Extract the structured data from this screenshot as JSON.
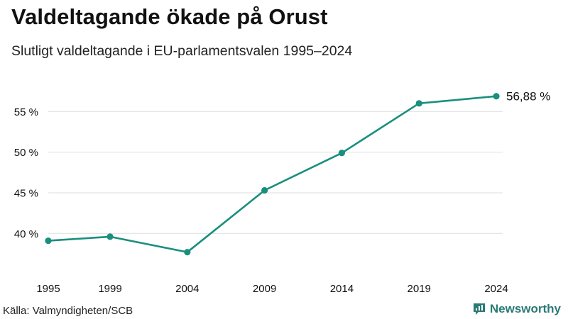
{
  "title": "Valdeltagande ökade på Orust",
  "subtitle": "Slutligt valdeltagande i EU-parlamentsvalen 1995–2024",
  "source": "Källa: Valmyndigheten/SCB",
  "brand": "Newsworthy",
  "colors": {
    "line": "#1a8f7e",
    "grid": "#dddddd",
    "text": "#111111",
    "brand": "#2a7a75"
  },
  "chart_data": {
    "type": "line",
    "title": "Valdeltagande ökade på Orust",
    "subtitle": "Slutligt valdeltagande i EU-parlamentsvalen 1995–2024",
    "xlabel": "",
    "ylabel": "",
    "categories": [
      "1995",
      "1999",
      "2004",
      "2009",
      "2014",
      "2019",
      "2024"
    ],
    "x": [
      1995,
      1999,
      2004,
      2009,
      2014,
      2019,
      2024
    ],
    "values": [
      39.1,
      39.6,
      37.7,
      45.3,
      49.9,
      56.0,
      56.88
    ],
    "yticks": [
      40,
      45,
      50,
      55
    ],
    "ytick_labels": [
      "40 %",
      "45 %",
      "50 %",
      "55 %"
    ],
    "ylim": [
      36.45,
      58.95
    ],
    "xlim": [
      1995,
      2024
    ],
    "grid": true,
    "end_label": "56,88 %"
  }
}
